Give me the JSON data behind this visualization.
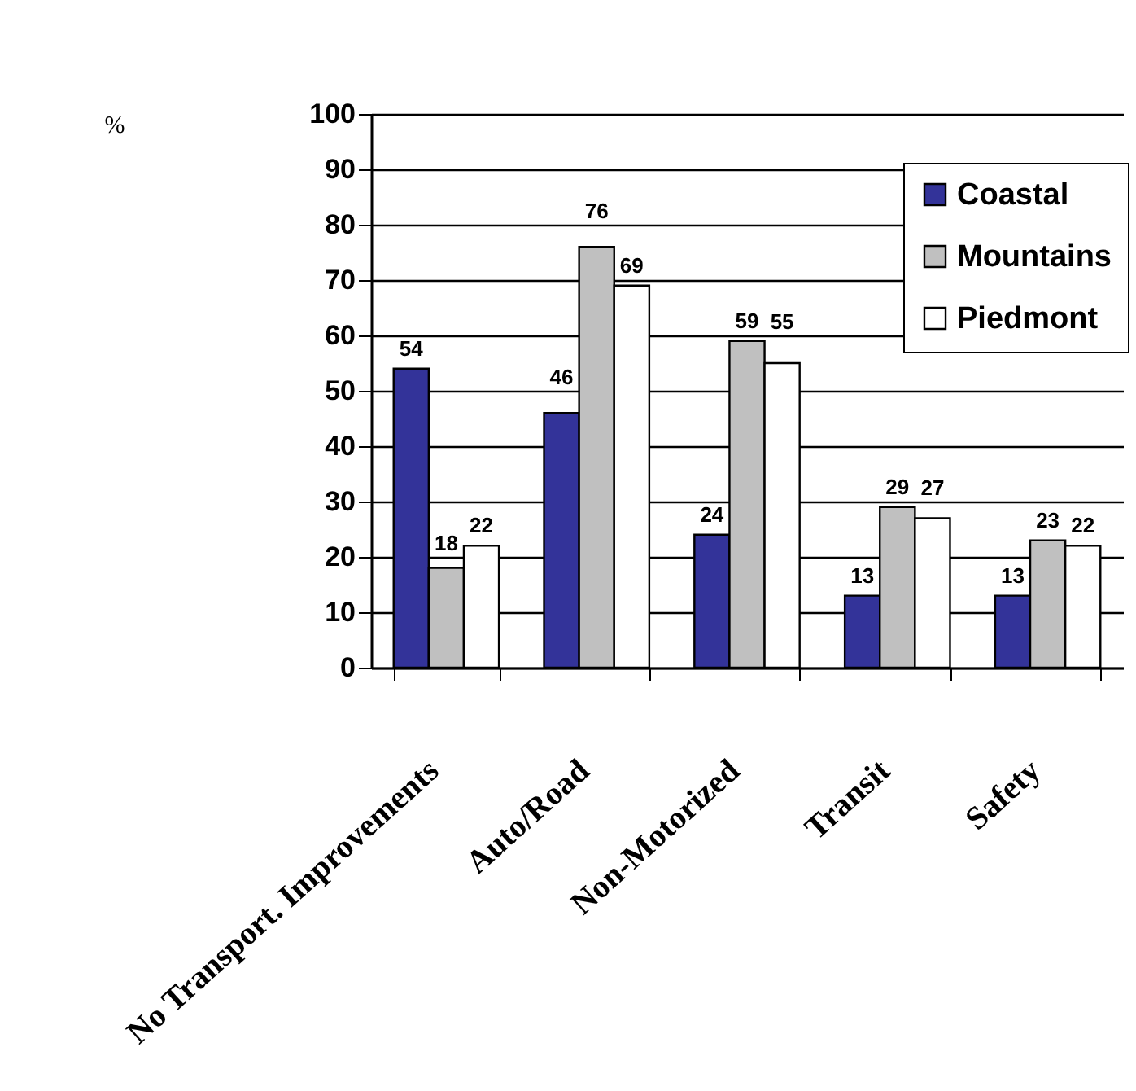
{
  "chart_data": {
    "type": "bar",
    "ylabel": "%",
    "categories": [
      "No Transport. Improvements",
      "Auto/Road",
      "Non-Motorized",
      "Transit",
      "Safety"
    ],
    "series": [
      {
        "name": "Coastal",
        "color": "#333399",
        "values": [
          54,
          46,
          24,
          13,
          13
        ]
      },
      {
        "name": "Mountains",
        "color": "#c0c0c0",
        "values": [
          18,
          76,
          59,
          29,
          23
        ]
      },
      {
        "name": "Piedmont",
        "color": "#ffffff",
        "values": [
          22,
          69,
          55,
          27,
          22
        ]
      }
    ],
    "ylim": [
      0,
      100
    ],
    "yticks": [
      0,
      10,
      20,
      30,
      40,
      50,
      60,
      70,
      80,
      90,
      100
    ],
    "grid": "y",
    "legend": "top right",
    "data_labels": true
  }
}
